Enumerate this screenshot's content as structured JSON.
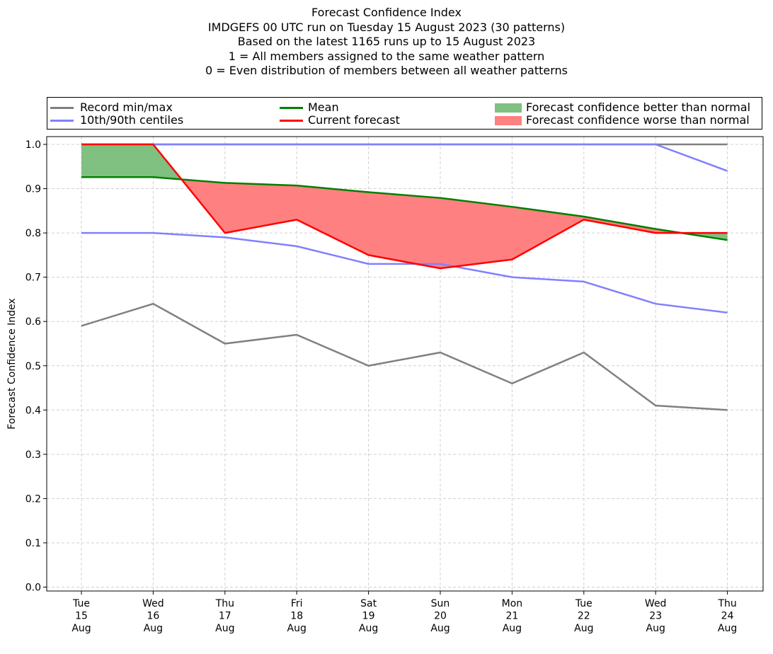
{
  "title_lines": [
    "Forecast Confidence Index",
    "IMDGEFS 00 UTC run on Tuesday 15 August 2023 (30 patterns)",
    "Based on the latest 1165 runs up to 15 August 2023",
    "1 = All members assigned to the same weather pattern",
    "0 = Even distribution of members between all weather patterns"
  ],
  "legend": {
    "placement": "top, above plot, 3 columns",
    "items": [
      {
        "label": "Record min/max",
        "kind": "line",
        "color": "#808080"
      },
      {
        "label": "10th/90th centiles",
        "kind": "line",
        "color": "#8080ff"
      },
      {
        "label": "Mean",
        "kind": "line",
        "color": "#008000"
      },
      {
        "label": "Current forecast",
        "kind": "line",
        "color": "#ff0000"
      },
      {
        "label": "Forecast confidence better than normal",
        "kind": "patch",
        "color": "#80c080"
      },
      {
        "label": "Forecast confidence worse than normal",
        "kind": "patch",
        "color": "#ff8080"
      }
    ]
  },
  "chart_data": {
    "type": "line",
    "title": "Forecast Confidence Index",
    "xlabel": "",
    "ylabel": "Forecast Confidence Index",
    "ylim": [
      0.0,
      1.0
    ],
    "yticks": [
      "0.0",
      "0.1",
      "0.2",
      "0.3",
      "0.4",
      "0.5",
      "0.6",
      "0.7",
      "0.8",
      "0.9",
      "1.0"
    ],
    "grid": true,
    "categories": [
      [
        "Tue",
        "15",
        "Aug"
      ],
      [
        "Wed",
        "16",
        "Aug"
      ],
      [
        "Thu",
        "17",
        "Aug"
      ],
      [
        "Fri",
        "18",
        "Aug"
      ],
      [
        "Sat",
        "19",
        "Aug"
      ],
      [
        "Sun",
        "20",
        "Aug"
      ],
      [
        "Mon",
        "21",
        "Aug"
      ],
      [
        "Tue",
        "22",
        "Aug"
      ],
      [
        "Wed",
        "23",
        "Aug"
      ],
      [
        "Thu",
        "24",
        "Aug"
      ]
    ],
    "series": [
      {
        "name": "Record min/max",
        "role": "record_min",
        "color": "#808080",
        "values": [
          0.59,
          0.64,
          0.55,
          0.57,
          0.5,
          0.53,
          0.46,
          0.53,
          0.41,
          0.4
        ]
      },
      {
        "name": "Record min/max",
        "role": "record_max",
        "color": "#808080",
        "values": [
          1.0,
          1.0,
          1.0,
          1.0,
          1.0,
          1.0,
          1.0,
          1.0,
          1.0,
          1.0
        ]
      },
      {
        "name": "10th/90th centiles",
        "role": "p10",
        "color": "#8080ff",
        "values": [
          0.8,
          0.8,
          0.79,
          0.77,
          0.73,
          0.73,
          0.7,
          0.69,
          0.64,
          0.62
        ]
      },
      {
        "name": "10th/90th centiles",
        "role": "p90",
        "color": "#8080ff",
        "values": [
          1.0,
          1.0,
          1.0,
          1.0,
          1.0,
          1.0,
          1.0,
          1.0,
          1.0,
          0.94
        ]
      },
      {
        "name": "Mean",
        "role": "mean",
        "color": "#008000",
        "values": [
          0.926,
          0.926,
          0.913,
          0.907,
          0.892,
          0.879,
          0.859,
          0.837,
          0.809,
          0.784
        ]
      },
      {
        "name": "Current forecast",
        "role": "forecast",
        "color": "#ff0000",
        "values": [
          1.0,
          1.0,
          0.8,
          0.83,
          0.75,
          0.72,
          0.74,
          0.83,
          0.8,
          0.8
        ]
      }
    ],
    "fills": [
      {
        "name": "Forecast confidence better than normal",
        "condition": "forecast > mean",
        "color": "#80c080"
      },
      {
        "name": "Forecast confidence worse than normal",
        "condition": "forecast < mean",
        "color": "#ff8080"
      }
    ]
  }
}
